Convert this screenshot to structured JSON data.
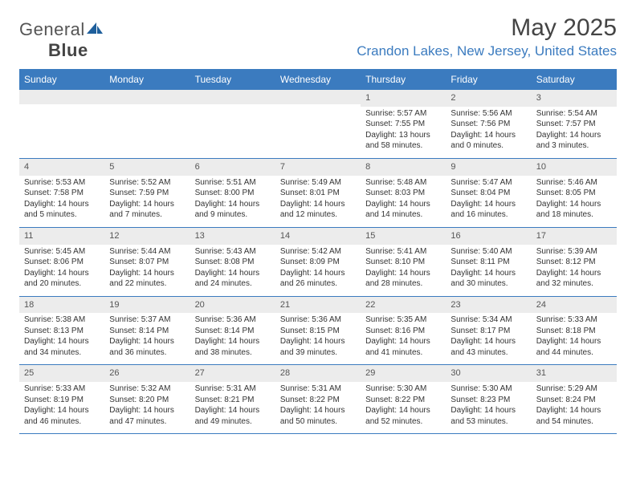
{
  "brand": {
    "part1": "General",
    "part2": "Blue",
    "accent": "#3b7bbf"
  },
  "title": "May 2025",
  "location": "Crandon Lakes, New Jersey, United States",
  "colors": {
    "header_bg": "#3b7bbf",
    "header_text": "#ffffff",
    "daynum_bg": "#ececec",
    "border": "#3b7bbf",
    "location_text": "#3b7bbf"
  },
  "typography": {
    "title_fontsize": 30,
    "location_fontsize": 17,
    "header_fontsize": 12,
    "cell_fontsize": 10
  },
  "day_names": [
    "Sunday",
    "Monday",
    "Tuesday",
    "Wednesday",
    "Thursday",
    "Friday",
    "Saturday"
  ],
  "weeks": [
    [
      {
        "blank": true
      },
      {
        "blank": true
      },
      {
        "blank": true
      },
      {
        "blank": true
      },
      {
        "n": "1",
        "sunrise": "Sunrise: 5:57 AM",
        "sunset": "Sunset: 7:55 PM",
        "daylight": "Daylight: 13 hours and 58 minutes."
      },
      {
        "n": "2",
        "sunrise": "Sunrise: 5:56 AM",
        "sunset": "Sunset: 7:56 PM",
        "daylight": "Daylight: 14 hours and 0 minutes."
      },
      {
        "n": "3",
        "sunrise": "Sunrise: 5:54 AM",
        "sunset": "Sunset: 7:57 PM",
        "daylight": "Daylight: 14 hours and 3 minutes."
      }
    ],
    [
      {
        "n": "4",
        "sunrise": "Sunrise: 5:53 AM",
        "sunset": "Sunset: 7:58 PM",
        "daylight": "Daylight: 14 hours and 5 minutes."
      },
      {
        "n": "5",
        "sunrise": "Sunrise: 5:52 AM",
        "sunset": "Sunset: 7:59 PM",
        "daylight": "Daylight: 14 hours and 7 minutes."
      },
      {
        "n": "6",
        "sunrise": "Sunrise: 5:51 AM",
        "sunset": "Sunset: 8:00 PM",
        "daylight": "Daylight: 14 hours and 9 minutes."
      },
      {
        "n": "7",
        "sunrise": "Sunrise: 5:49 AM",
        "sunset": "Sunset: 8:01 PM",
        "daylight": "Daylight: 14 hours and 12 minutes."
      },
      {
        "n": "8",
        "sunrise": "Sunrise: 5:48 AM",
        "sunset": "Sunset: 8:03 PM",
        "daylight": "Daylight: 14 hours and 14 minutes."
      },
      {
        "n": "9",
        "sunrise": "Sunrise: 5:47 AM",
        "sunset": "Sunset: 8:04 PM",
        "daylight": "Daylight: 14 hours and 16 minutes."
      },
      {
        "n": "10",
        "sunrise": "Sunrise: 5:46 AM",
        "sunset": "Sunset: 8:05 PM",
        "daylight": "Daylight: 14 hours and 18 minutes."
      }
    ],
    [
      {
        "n": "11",
        "sunrise": "Sunrise: 5:45 AM",
        "sunset": "Sunset: 8:06 PM",
        "daylight": "Daylight: 14 hours and 20 minutes."
      },
      {
        "n": "12",
        "sunrise": "Sunrise: 5:44 AM",
        "sunset": "Sunset: 8:07 PM",
        "daylight": "Daylight: 14 hours and 22 minutes."
      },
      {
        "n": "13",
        "sunrise": "Sunrise: 5:43 AM",
        "sunset": "Sunset: 8:08 PM",
        "daylight": "Daylight: 14 hours and 24 minutes."
      },
      {
        "n": "14",
        "sunrise": "Sunrise: 5:42 AM",
        "sunset": "Sunset: 8:09 PM",
        "daylight": "Daylight: 14 hours and 26 minutes."
      },
      {
        "n": "15",
        "sunrise": "Sunrise: 5:41 AM",
        "sunset": "Sunset: 8:10 PM",
        "daylight": "Daylight: 14 hours and 28 minutes."
      },
      {
        "n": "16",
        "sunrise": "Sunrise: 5:40 AM",
        "sunset": "Sunset: 8:11 PM",
        "daylight": "Daylight: 14 hours and 30 minutes."
      },
      {
        "n": "17",
        "sunrise": "Sunrise: 5:39 AM",
        "sunset": "Sunset: 8:12 PM",
        "daylight": "Daylight: 14 hours and 32 minutes."
      }
    ],
    [
      {
        "n": "18",
        "sunrise": "Sunrise: 5:38 AM",
        "sunset": "Sunset: 8:13 PM",
        "daylight": "Daylight: 14 hours and 34 minutes."
      },
      {
        "n": "19",
        "sunrise": "Sunrise: 5:37 AM",
        "sunset": "Sunset: 8:14 PM",
        "daylight": "Daylight: 14 hours and 36 minutes."
      },
      {
        "n": "20",
        "sunrise": "Sunrise: 5:36 AM",
        "sunset": "Sunset: 8:14 PM",
        "daylight": "Daylight: 14 hours and 38 minutes."
      },
      {
        "n": "21",
        "sunrise": "Sunrise: 5:36 AM",
        "sunset": "Sunset: 8:15 PM",
        "daylight": "Daylight: 14 hours and 39 minutes."
      },
      {
        "n": "22",
        "sunrise": "Sunrise: 5:35 AM",
        "sunset": "Sunset: 8:16 PM",
        "daylight": "Daylight: 14 hours and 41 minutes."
      },
      {
        "n": "23",
        "sunrise": "Sunrise: 5:34 AM",
        "sunset": "Sunset: 8:17 PM",
        "daylight": "Daylight: 14 hours and 43 minutes."
      },
      {
        "n": "24",
        "sunrise": "Sunrise: 5:33 AM",
        "sunset": "Sunset: 8:18 PM",
        "daylight": "Daylight: 14 hours and 44 minutes."
      }
    ],
    [
      {
        "n": "25",
        "sunrise": "Sunrise: 5:33 AM",
        "sunset": "Sunset: 8:19 PM",
        "daylight": "Daylight: 14 hours and 46 minutes."
      },
      {
        "n": "26",
        "sunrise": "Sunrise: 5:32 AM",
        "sunset": "Sunset: 8:20 PM",
        "daylight": "Daylight: 14 hours and 47 minutes."
      },
      {
        "n": "27",
        "sunrise": "Sunrise: 5:31 AM",
        "sunset": "Sunset: 8:21 PM",
        "daylight": "Daylight: 14 hours and 49 minutes."
      },
      {
        "n": "28",
        "sunrise": "Sunrise: 5:31 AM",
        "sunset": "Sunset: 8:22 PM",
        "daylight": "Daylight: 14 hours and 50 minutes."
      },
      {
        "n": "29",
        "sunrise": "Sunrise: 5:30 AM",
        "sunset": "Sunset: 8:22 PM",
        "daylight": "Daylight: 14 hours and 52 minutes."
      },
      {
        "n": "30",
        "sunrise": "Sunrise: 5:30 AM",
        "sunset": "Sunset: 8:23 PM",
        "daylight": "Daylight: 14 hours and 53 minutes."
      },
      {
        "n": "31",
        "sunrise": "Sunrise: 5:29 AM",
        "sunset": "Sunset: 8:24 PM",
        "daylight": "Daylight: 14 hours and 54 minutes."
      }
    ]
  ]
}
